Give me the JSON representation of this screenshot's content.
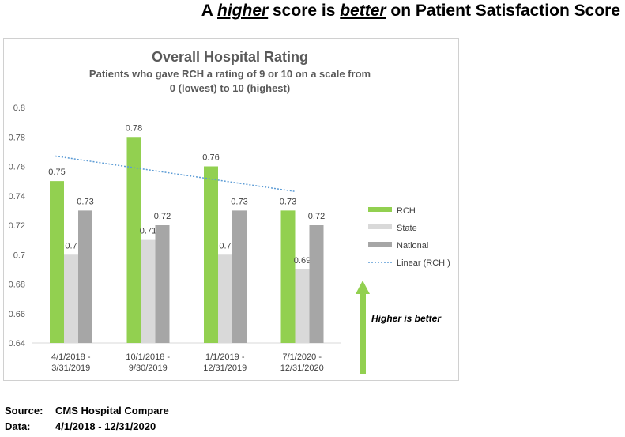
{
  "headline": {
    "prefix": "A ",
    "word1": "higher",
    "middle": " score is ",
    "word2": "better",
    "suffix": " on Patient Satisfaction Score"
  },
  "chart_data": {
    "type": "bar",
    "title": "Overall Hospital Rating",
    "subtitle_lines": [
      "Patients who gave RCH a rating of 9 or 10 on a scale from",
      "0 (lowest) to 10 (highest)"
    ],
    "categories": [
      [
        "4/1/2018 -",
        "3/31/2019"
      ],
      [
        "10/1/2018 -",
        "9/30/2019"
      ],
      [
        "1/1/2019 -",
        "12/31/2019"
      ],
      [
        "7/1/2020 -",
        "12/31/2020"
      ]
    ],
    "series": [
      {
        "name": "RCH",
        "color": "#92d050",
        "values": [
          0.75,
          0.78,
          0.76,
          0.73
        ]
      },
      {
        "name": "State",
        "color": "#d9d9d9",
        "values": [
          0.7,
          0.71,
          0.7,
          0.69
        ]
      },
      {
        "name": "National",
        "color": "#a6a6a6",
        "values": [
          0.73,
          0.72,
          0.73,
          0.72
        ]
      }
    ],
    "trendline": {
      "name": "Linear (RCH )",
      "color": "#5b9bd5",
      "of_series": "RCH"
    },
    "ylim": [
      0.64,
      0.8
    ],
    "yticks": [
      "0.64",
      "0.66",
      "0.68",
      "0.7",
      "0.72",
      "0.74",
      "0.76",
      "0.78",
      "0.8"
    ],
    "grid": false,
    "legend_position": "right"
  },
  "annotation": {
    "text": "Higher is better",
    "arrow_color": "#92d050"
  },
  "footer": {
    "source_label": "Source:",
    "source_value": "CMS Hospital Compare",
    "data_label": "Data:",
    "data_value": "4/1/2018 - 12/31/2020"
  }
}
